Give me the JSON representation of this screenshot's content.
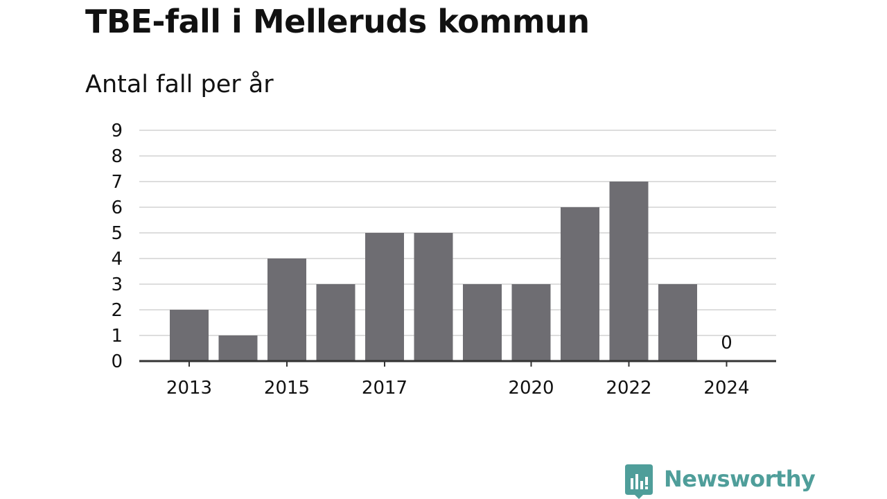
{
  "header": {
    "title": "TBE-fall i Melleruds kommun",
    "subtitle": "Antal fall per år"
  },
  "brand": {
    "name": "Newsworthy",
    "icon": "newsworthy-logo-icon",
    "color": "#4f9e9a"
  },
  "colors": {
    "bar": "#6e6d72",
    "grid": "#dddddd",
    "axis": "#333333",
    "text": "#111111"
  },
  "chart_data": {
    "type": "bar",
    "categories": [
      "2013",
      "2014",
      "2015",
      "2016",
      "2017",
      "2018",
      "2019",
      "2020",
      "2021",
      "2022",
      "2023",
      "2024"
    ],
    "values": [
      2,
      1,
      4,
      3,
      5,
      5,
      3,
      3,
      6,
      7,
      3,
      0
    ],
    "x_tick_labels": [
      "2013",
      "2015",
      "2017",
      "2020",
      "2022",
      "2024"
    ],
    "y_ticks": [
      "0",
      "1",
      "2",
      "3",
      "4",
      "5",
      "6",
      "7",
      "8",
      "9"
    ],
    "ylim": [
      0,
      9
    ],
    "grid": true,
    "zero_label": "0",
    "title": "TBE-fall i Melleruds kommun",
    "subtitle": "Antal fall per år",
    "xlabel": "",
    "ylabel": ""
  }
}
